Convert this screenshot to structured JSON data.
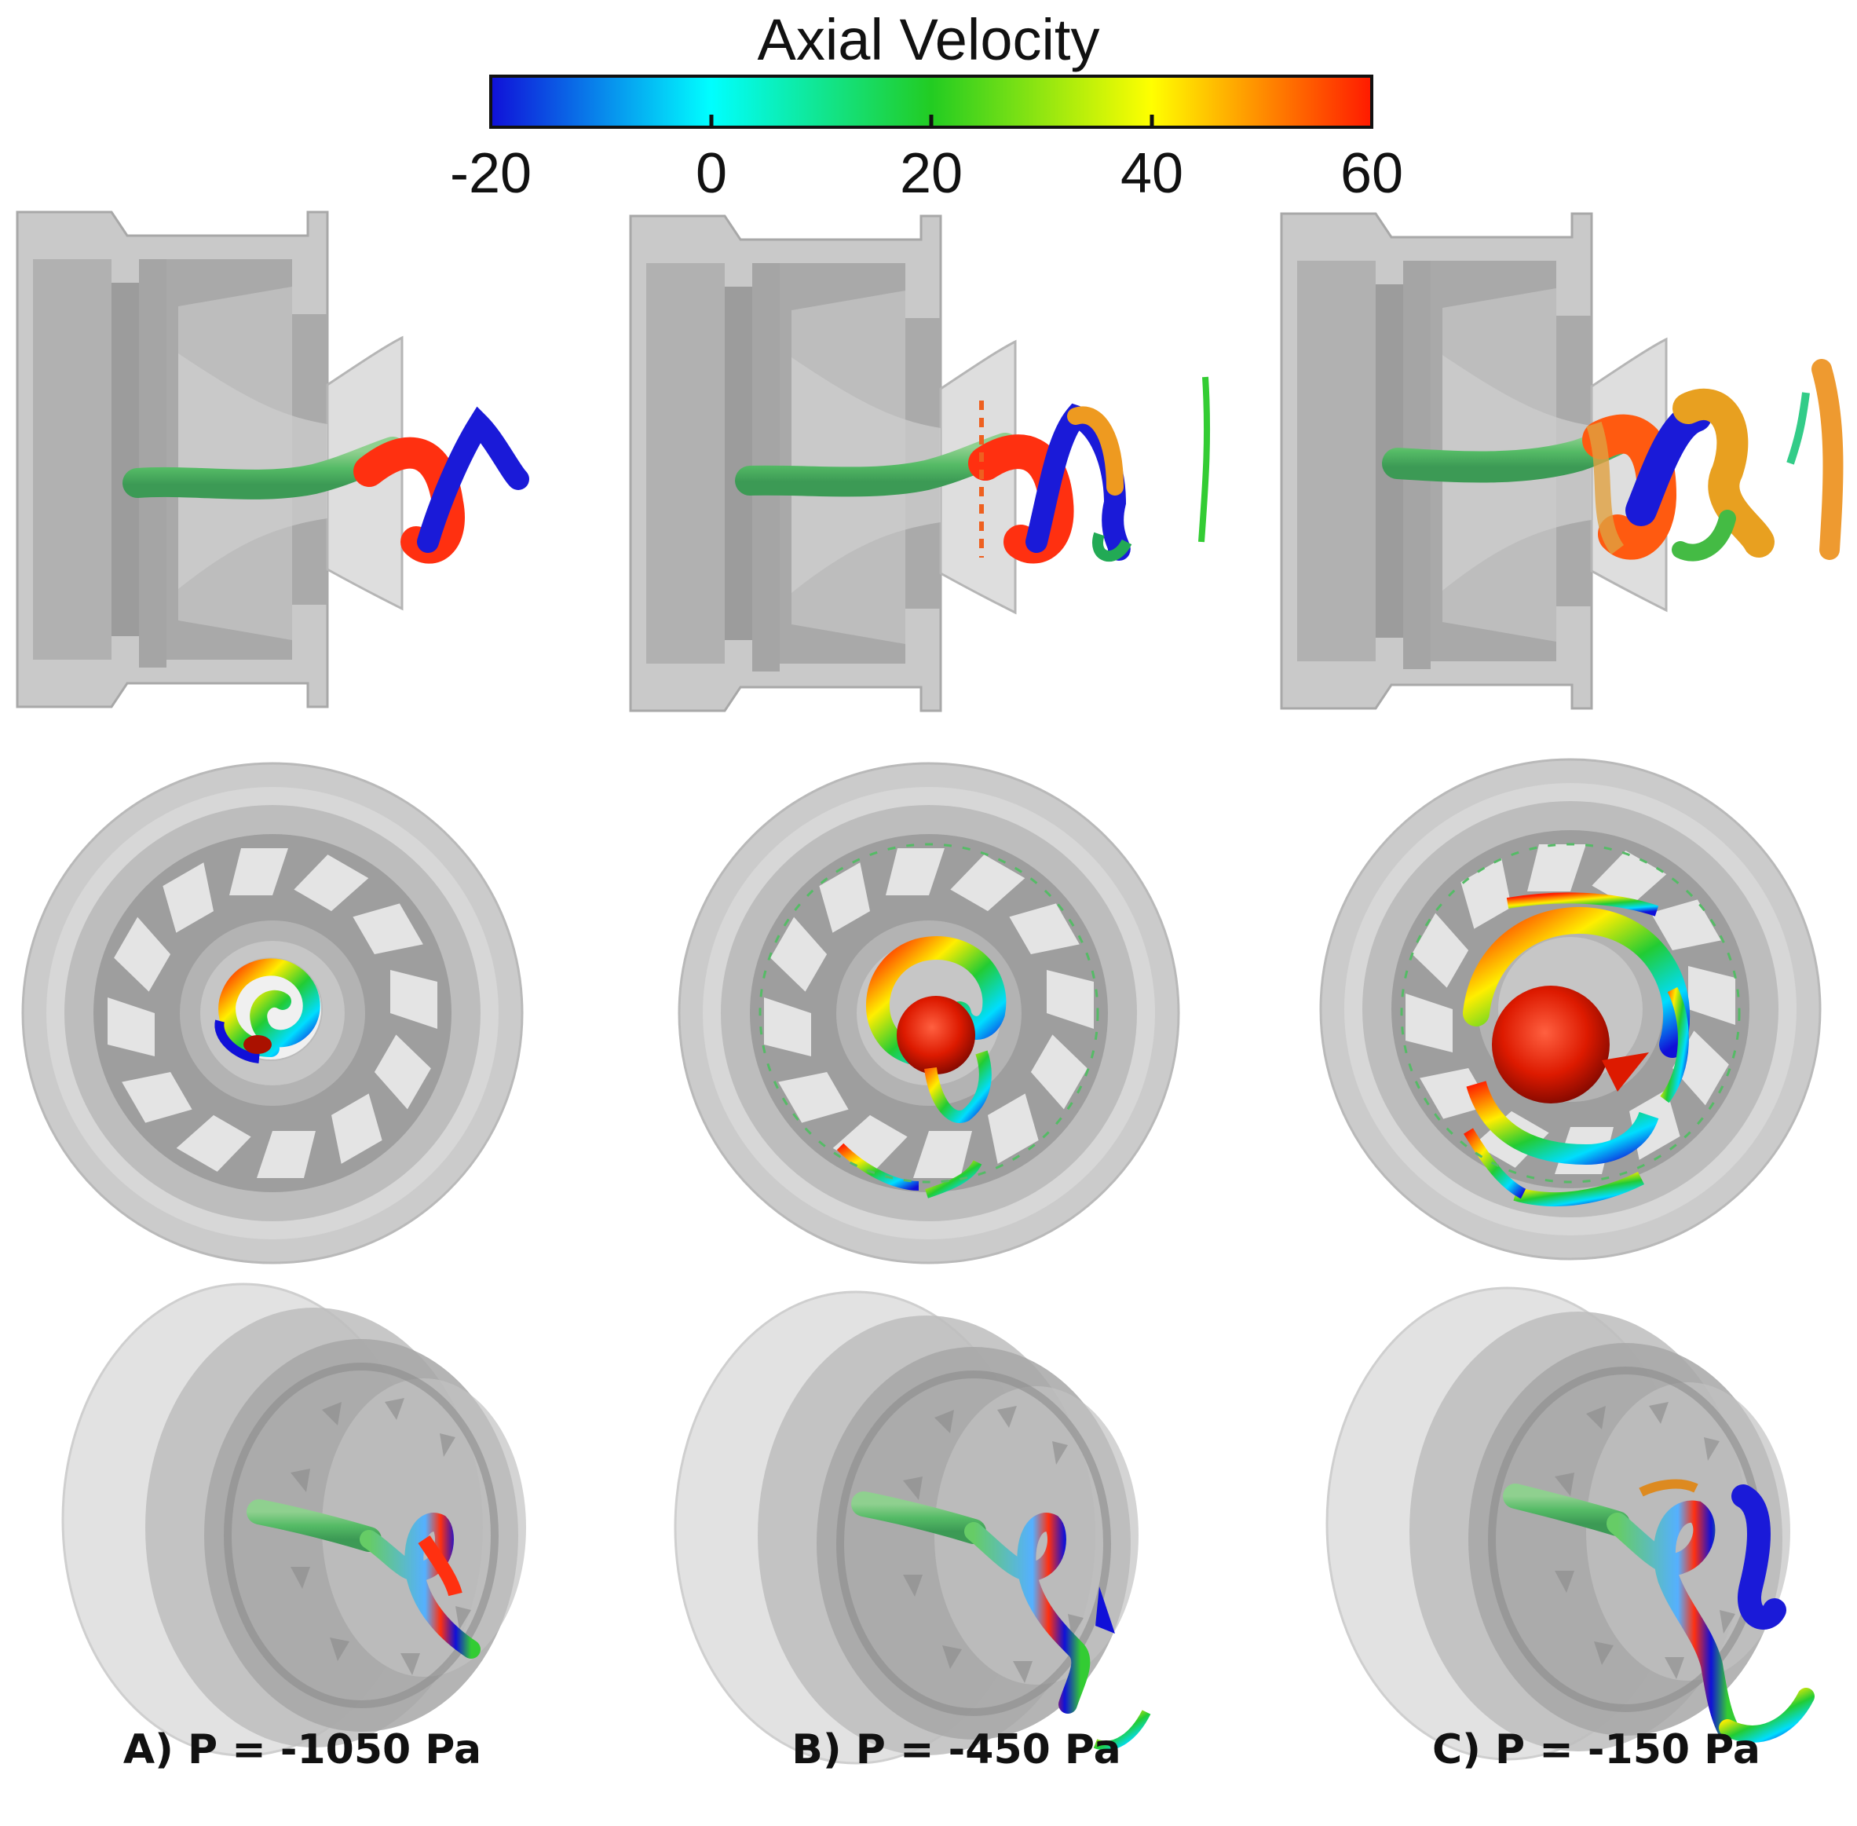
{
  "colorbar": {
    "title": "Axial Velocity",
    "ticks": [
      "-20",
      "0",
      "20",
      "40",
      "60"
    ],
    "colors": [
      "#1010d8",
      "#00ffff",
      "#22cc22",
      "#ffff00",
      "#ff2000"
    ]
  },
  "panels": [
    {
      "caption": "A)  P = -1050 Pa"
    },
    {
      "caption": "B)  P = -450 Pa"
    },
    {
      "caption": "C)  P = -150 Pa"
    }
  ]
}
